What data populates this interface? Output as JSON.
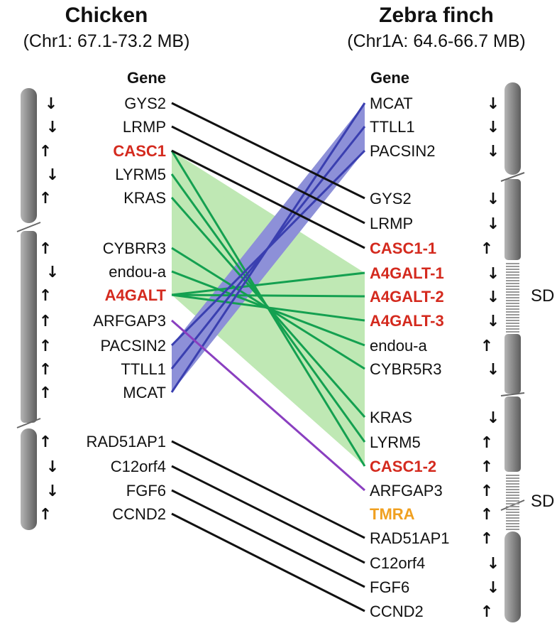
{
  "left": {
    "title": "Chicken",
    "subtitle": "(Chr1: 67.1-73.2 MB)",
    "gene_header": "Gene",
    "genes": [
      {
        "name": "GYS2",
        "color": "black",
        "dir": "down"
      },
      {
        "name": "LRMP",
        "color": "black",
        "dir": "down"
      },
      {
        "name": "CASC1",
        "color": "red",
        "dir": "up"
      },
      {
        "name": "LYRM5",
        "color": "black",
        "dir": "down"
      },
      {
        "name": "KRAS",
        "color": "black",
        "dir": "up"
      },
      {
        "name": "CYBRR3",
        "color": "black",
        "dir": "up"
      },
      {
        "name": "endou-a",
        "color": "black",
        "dir": "down"
      },
      {
        "name": "A4GALT",
        "color": "red",
        "dir": "up"
      },
      {
        "name": "ARFGAP3",
        "color": "black",
        "dir": "up"
      },
      {
        "name": "PACSIN2",
        "color": "black",
        "dir": "up"
      },
      {
        "name": "TTLL1",
        "color": "black",
        "dir": "up"
      },
      {
        "name": "MCAT",
        "color": "black",
        "dir": "up"
      },
      {
        "name": "RAD51AP1",
        "color": "black",
        "dir": "up"
      },
      {
        "name": "C12orf4",
        "color": "black",
        "dir": "down"
      },
      {
        "name": "FGF6",
        "color": "black",
        "dir": "down"
      },
      {
        "name": "CCND2",
        "color": "black",
        "dir": "up"
      }
    ]
  },
  "right": {
    "title": "Zebra finch",
    "subtitle": "(Chr1A: 64.6-66.7 MB)",
    "gene_header": "Gene",
    "sd_labels": [
      "SD",
      "SD"
    ],
    "genes": [
      {
        "name": "MCAT",
        "color": "black",
        "dir": "down"
      },
      {
        "name": "TTLL1",
        "color": "black",
        "dir": "down"
      },
      {
        "name": "PACSIN2",
        "color": "black",
        "dir": "down"
      },
      {
        "name": "GYS2",
        "color": "black",
        "dir": "down"
      },
      {
        "name": "LRMP",
        "color": "black",
        "dir": "down"
      },
      {
        "name": "CASC1-1",
        "color": "red",
        "dir": "up"
      },
      {
        "name": "A4GALT-1",
        "color": "red",
        "dir": "down"
      },
      {
        "name": "A4GALT-2",
        "color": "red",
        "dir": "down"
      },
      {
        "name": "A4GALT-3",
        "color": "red",
        "dir": "down"
      },
      {
        "name": "endou-a",
        "color": "black",
        "dir": "up"
      },
      {
        "name": "CYBR5R3",
        "color": "black",
        "dir": "down"
      },
      {
        "name": "KRAS",
        "color": "black",
        "dir": "down"
      },
      {
        "name": "LYRM5",
        "color": "black",
        "dir": "up"
      },
      {
        "name": "CASC1-2",
        "color": "red",
        "dir": "up"
      },
      {
        "name": "ARFGAP3",
        "color": "black",
        "dir": "up"
      },
      {
        "name": "TMRA",
        "color": "orange",
        "dir": "up"
      },
      {
        "name": "RAD51AP1",
        "color": "black",
        "dir": "up"
      },
      {
        "name": "C12orf4",
        "color": "black",
        "dir": "down"
      },
      {
        "name": "FGF6",
        "color": "black",
        "dir": "down"
      },
      {
        "name": "CCND2",
        "color": "black",
        "dir": "up"
      }
    ]
  },
  "colors": {
    "black_link": "#111111",
    "blue_link": "#3a3fb0",
    "blue_fill": "#8d90d8",
    "green_link": "#14a050",
    "green_fill": "#bfe8b4",
    "purple_link": "#8a3fc0",
    "red_text": "#d42a1e",
    "orange_text": "#f0a020",
    "chromosome": "#8a8a8a"
  },
  "links": {
    "black": [
      [
        "GYS2",
        "GYS2"
      ],
      [
        "LRMP",
        "LRMP"
      ],
      [
        "CASC1",
        "CASC1-1"
      ],
      [
        "RAD51AP1",
        "RAD51AP1"
      ],
      [
        "C12orf4",
        "C12orf4"
      ],
      [
        "FGF6",
        "FGF6"
      ],
      [
        "CCND2",
        "CCND2"
      ]
    ],
    "blue": [
      [
        "PACSIN2",
        "PACSIN2"
      ],
      [
        "TTLL1",
        "TTLL1"
      ],
      [
        "MCAT",
        "MCAT"
      ]
    ],
    "green": [
      [
        "CASC1",
        "CASC1-2"
      ],
      [
        "LYRM5",
        "LYRM5"
      ],
      [
        "KRAS",
        "KRAS"
      ],
      [
        "CYBRR3",
        "CYBR5R3"
      ],
      [
        "endou-a",
        "endou-a"
      ],
      [
        "A4GALT",
        "A4GALT-1"
      ],
      [
        "A4GALT",
        "A4GALT-2"
      ],
      [
        "A4GALT",
        "A4GALT-3"
      ]
    ],
    "purple": [
      [
        "ARFGAP3",
        "ARFGAP3"
      ]
    ]
  }
}
